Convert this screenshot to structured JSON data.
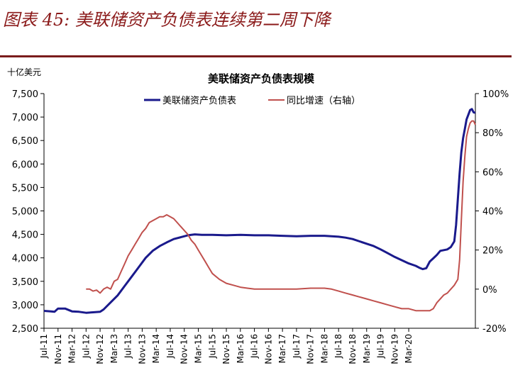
{
  "figure_title": "图表 45:  美联储资产负债表连续第二周下降",
  "chart_data": {
    "type": "line",
    "title": "美联储资产负债表规模",
    "y_unit": "十亿美元",
    "yleft": {
      "min": 2500,
      "max": 7500,
      "ticks": [
        "2,500",
        "3,000",
        "3,500",
        "4,000",
        "4,500",
        "5,000",
        "5,500",
        "6,000",
        "6,500",
        "7,000",
        "7,500"
      ]
    },
    "yright": {
      "min": -20,
      "max": 100,
      "ticks": [
        "-20%",
        "0%",
        "20%",
        "40%",
        "60%",
        "80%",
        "100%"
      ]
    },
    "x_start": "2011-07",
    "x_labels": [
      "Jul-11",
      "Nov-11",
      "Mar-12",
      "Jul-12",
      "Nov-12",
      "Mar-13",
      "Jul-13",
      "Nov-13",
      "Mar-14",
      "Jul-14",
      "Nov-14",
      "Mar-15",
      "Jul-15",
      "Nov-15",
      "Mar-16",
      "Jul-16",
      "Nov-16",
      "Mar-17",
      "Jul-17",
      "Nov-17",
      "Mar-18",
      "Jul-18",
      "Nov-18",
      "Mar-19",
      "Jul-19",
      "Nov-19",
      "Mar-20"
    ],
    "series": [
      {
        "name": "美联储资产负债表",
        "axis": "left",
        "color": "#1a1a8c",
        "points": [
          [
            0,
            2870
          ],
          [
            2,
            2860
          ],
          [
            3,
            2850
          ],
          [
            4,
            2920
          ],
          [
            6,
            2920
          ],
          [
            8,
            2860
          ],
          [
            10,
            2850
          ],
          [
            12,
            2830
          ],
          [
            14,
            2840
          ],
          [
            16,
            2850
          ],
          [
            17,
            2900
          ],
          [
            19,
            3050
          ],
          [
            21,
            3200
          ],
          [
            23,
            3400
          ],
          [
            25,
            3600
          ],
          [
            27,
            3800
          ],
          [
            29,
            4000
          ],
          [
            31,
            4150
          ],
          [
            33,
            4250
          ],
          [
            35,
            4330
          ],
          [
            37,
            4400
          ],
          [
            39,
            4440
          ],
          [
            41,
            4480
          ],
          [
            43,
            4500
          ],
          [
            45,
            4490
          ],
          [
            48,
            4490
          ],
          [
            52,
            4480
          ],
          [
            56,
            4490
          ],
          [
            60,
            4480
          ],
          [
            64,
            4480
          ],
          [
            68,
            4470
          ],
          [
            72,
            4460
          ],
          [
            76,
            4470
          ],
          [
            80,
            4470
          ],
          [
            84,
            4450
          ],
          [
            86,
            4430
          ],
          [
            88,
            4400
          ],
          [
            90,
            4350
          ],
          [
            92,
            4300
          ],
          [
            94,
            4250
          ],
          [
            96,
            4180
          ],
          [
            98,
            4100
          ],
          [
            100,
            4020
          ],
          [
            102,
            3950
          ],
          [
            104,
            3880
          ],
          [
            106,
            3830
          ],
          [
            107,
            3790
          ],
          [
            108,
            3760
          ],
          [
            109,
            3780
          ],
          [
            110,
            3920
          ],
          [
            111,
            3990
          ],
          [
            112,
            4060
          ],
          [
            113,
            4150
          ],
          [
            115,
            4180
          ],
          [
            116,
            4230
          ],
          [
            117,
            4350
          ],
          [
            117.5,
            4700
          ],
          [
            118,
            5250
          ],
          [
            118.5,
            5800
          ],
          [
            119,
            6250
          ],
          [
            119.5,
            6550
          ],
          [
            120,
            6750
          ],
          [
            120.5,
            6950
          ],
          [
            121,
            7050
          ],
          [
            121.5,
            7150
          ],
          [
            122,
            7170
          ],
          [
            122.5,
            7100
          ],
          [
            123,
            7090
          ]
        ]
      },
      {
        "name": "同比增速（右轴）",
        "axis": "right",
        "color": "#c0504d",
        "points": [
          [
            12,
            0
          ],
          [
            13,
            0
          ],
          [
            14,
            -1
          ],
          [
            15,
            -0.5
          ],
          [
            16,
            -2
          ],
          [
            17,
            0
          ],
          [
            18,
            1
          ],
          [
            19,
            0
          ],
          [
            20,
            4
          ],
          [
            21,
            5
          ],
          [
            22,
            9
          ],
          [
            23,
            13
          ],
          [
            24,
            17
          ],
          [
            25,
            20
          ],
          [
            26,
            23
          ],
          [
            27,
            26
          ],
          [
            28,
            29
          ],
          [
            29,
            31
          ],
          [
            30,
            34
          ],
          [
            31,
            35
          ],
          [
            32,
            36
          ],
          [
            33,
            37
          ],
          [
            34,
            37
          ],
          [
            35,
            38
          ],
          [
            36,
            37
          ],
          [
            37,
            36
          ],
          [
            38,
            34
          ],
          [
            39,
            32
          ],
          [
            40,
            30
          ],
          [
            41,
            28
          ],
          [
            42,
            25
          ],
          [
            43,
            23
          ],
          [
            44,
            20
          ],
          [
            45,
            17
          ],
          [
            46,
            14
          ],
          [
            47,
            11
          ],
          [
            48,
            8
          ],
          [
            50,
            5
          ],
          [
            52,
            3
          ],
          [
            54,
            2
          ],
          [
            56,
            1
          ],
          [
            58,
            0.5
          ],
          [
            60,
            0
          ],
          [
            64,
            0
          ],
          [
            68,
            0
          ],
          [
            72,
            0
          ],
          [
            76,
            0.5
          ],
          [
            80,
            0.5
          ],
          [
            82,
            0
          ],
          [
            84,
            -1
          ],
          [
            86,
            -2
          ],
          [
            88,
            -3
          ],
          [
            90,
            -4
          ],
          [
            92,
            -5
          ],
          [
            94,
            -6
          ],
          [
            96,
            -7
          ],
          [
            98,
            -8
          ],
          [
            100,
            -9
          ],
          [
            102,
            -10
          ],
          [
            104,
            -10
          ],
          [
            106,
            -11
          ],
          [
            108,
            -11
          ],
          [
            110,
            -11
          ],
          [
            111,
            -10
          ],
          [
            112,
            -7
          ],
          [
            113,
            -5
          ],
          [
            114,
            -3
          ],
          [
            115,
            -2
          ],
          [
            116,
            0
          ],
          [
            117,
            2
          ],
          [
            118,
            5
          ],
          [
            118.5,
            15
          ],
          [
            119,
            35
          ],
          [
            119.5,
            55
          ],
          [
            120,
            68
          ],
          [
            120.5,
            78
          ],
          [
            121,
            82
          ],
          [
            121.5,
            85
          ],
          [
            122,
            86
          ],
          [
            122.5,
            86
          ],
          [
            123,
            84
          ]
        ]
      }
    ],
    "legend_position": "top"
  }
}
